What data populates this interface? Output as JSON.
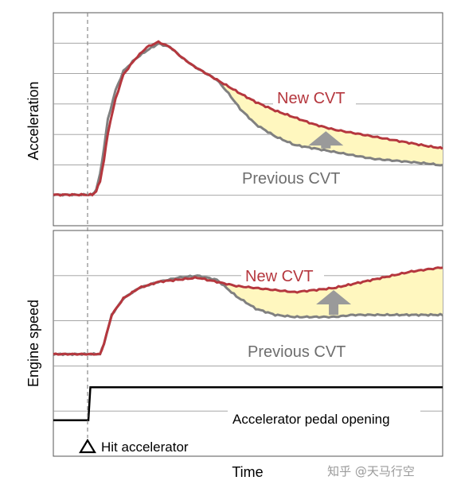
{
  "chart_data": [
    {
      "type": "line",
      "panel": "top",
      "title": "",
      "xlabel": "",
      "ylabel": "Acceleration",
      "xlim": [
        0,
        100
      ],
      "ylim": [
        0,
        100
      ],
      "grid": true,
      "gridline_count": 6,
      "series": [
        {
          "name": "New CVT",
          "color": "#b5373e",
          "x": [
            0,
            9,
            10,
            11,
            12,
            13,
            14,
            16,
            18,
            21,
            24,
            27,
            30,
            33,
            36,
            39,
            42,
            45,
            48,
            52,
            57,
            62,
            67,
            72,
            77,
            82,
            87,
            92,
            97,
            100
          ],
          "y": [
            6,
            6,
            6,
            8,
            14,
            26,
            42,
            62,
            76,
            85,
            92,
            95,
            92,
            86,
            81,
            77,
            73,
            69,
            65,
            60,
            55,
            51,
            47,
            44,
            42,
            40,
            38,
            36,
            34,
            33
          ]
        },
        {
          "name": "Previous CVT",
          "color": "#808080",
          "x": [
            0,
            9,
            10,
            11,
            12,
            13,
            14,
            16,
            18,
            21,
            24,
            27,
            30,
            33,
            36,
            39,
            42,
            45,
            48,
            52,
            57,
            62,
            67,
            72,
            77,
            82,
            87,
            92,
            97,
            100
          ],
          "y": [
            6,
            6,
            6,
            9,
            18,
            33,
            50,
            67,
            78,
            85,
            90,
            94,
            92,
            86,
            81,
            77,
            73,
            65,
            56,
            47,
            40,
            35,
            33,
            31,
            29,
            27,
            26,
            25,
            24,
            23
          ]
        }
      ],
      "annotations": [
        "New CVT",
        "Previous CVT"
      ]
    },
    {
      "type": "line",
      "panel": "bottom",
      "title": "",
      "xlabel": "Time",
      "ylabel": "Engine speed",
      "xlim": [
        0,
        100
      ],
      "ylim": [
        0,
        100
      ],
      "grid": true,
      "gridline_count": 4,
      "series": [
        {
          "name": "New CVT",
          "color": "#b5373e",
          "x": [
            0,
            11,
            12,
            13,
            15,
            18,
            22,
            27,
            32,
            37,
            42,
            47,
            52,
            57,
            62,
            67,
            72,
            77,
            82,
            87,
            92,
            100
          ],
          "y": [
            44,
            44,
            44,
            49,
            63,
            71,
            76,
            79,
            80,
            81,
            79,
            77,
            76,
            75,
            74,
            75,
            76,
            78,
            80,
            82,
            84,
            86
          ]
        },
        {
          "name": "Previous CVT",
          "color": "#808080",
          "x": [
            0,
            11,
            12,
            13,
            15,
            18,
            22,
            27,
            32,
            37,
            42,
            47,
            52,
            57,
            62,
            67,
            72,
            77,
            82,
            87,
            92,
            100
          ],
          "y": [
            44,
            44,
            44,
            49,
            63,
            71,
            76,
            79,
            81,
            82,
            80,
            72,
            66,
            63,
            62,
            62,
            62,
            63,
            63,
            63,
            63,
            63
          ]
        },
        {
          "name": "Accelerator pedal opening",
          "color": "#000000",
          "x": [
            0,
            9,
            9.5,
            100
          ],
          "y": [
            12,
            12,
            28,
            28
          ]
        }
      ],
      "annotations": [
        "New CVT",
        "Previous CVT",
        "Accelerator pedal opening",
        "Hit accelerator"
      ]
    }
  ],
  "labels": {
    "top_ylabel": "Acceleration",
    "bottom_ylabel": "Engine speed",
    "xlabel": "Time",
    "top_new": "New CVT",
    "top_prev": "Previous CVT",
    "bottom_new": "New CVT",
    "bottom_prev": "Previous CVT",
    "pedal": "Accelerator pedal opening",
    "hit": "Hit accelerator",
    "watermark": "知乎 @天马行空"
  },
  "colors": {
    "new_cvt": "#b5373e",
    "previous_cvt": "#808080",
    "fill": "#fff7bf",
    "arrow": "#9a9a9a",
    "grid": "#9a9a9a",
    "frame": "#555555"
  }
}
